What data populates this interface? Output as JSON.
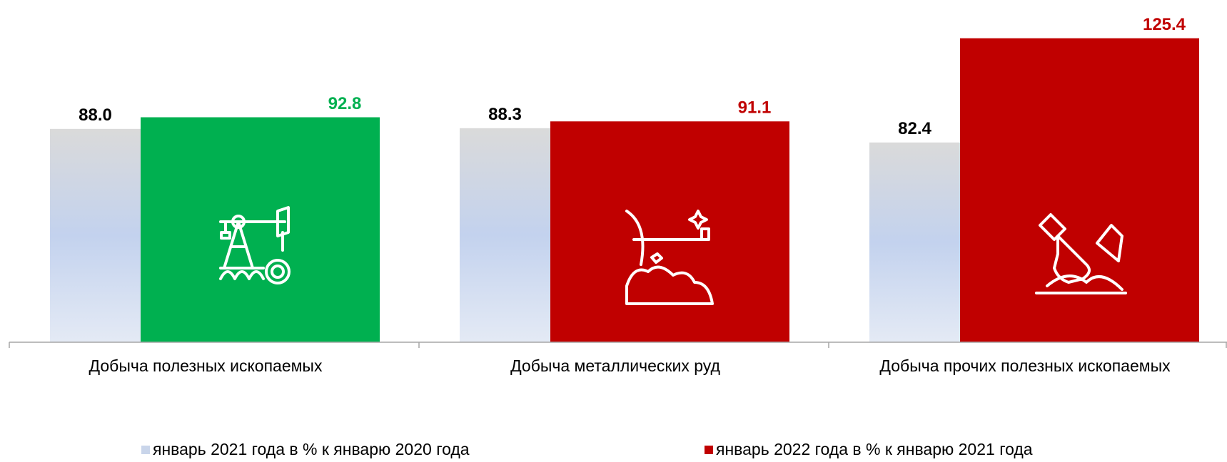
{
  "chart_data": {
    "type": "bar",
    "categories": [
      "Добыча полезных ископаемых",
      "Добыча металлических руд",
      "Добыча прочих полезных ископаемых"
    ],
    "series": [
      {
        "name": "январь 2021 года в % к январю 2020 года",
        "color": "#c9d5ea",
        "label_color": "#000000",
        "values": [
          88.0,
          88.3,
          82.4
        ],
        "value_labels": [
          "88.0",
          "88.3",
          "82.4"
        ]
      },
      {
        "name": "январь 2022 года в % к январю 2021 года",
        "color": "#c00000",
        "colors": [
          "#00b050",
          "#c00000",
          "#c00000"
        ],
        "values": [
          92.8,
          91.1,
          125.4
        ],
        "value_labels": [
          "92.8",
          "91.1",
          "125.4"
        ]
      }
    ],
    "ylim": [
      0,
      140
    ]
  }
}
